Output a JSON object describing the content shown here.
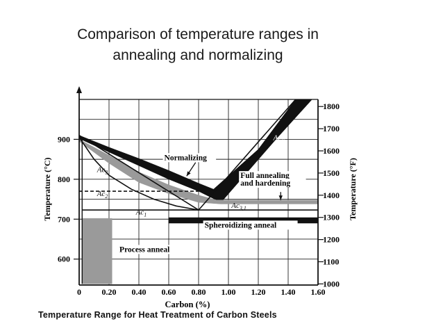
{
  "slide": {
    "title_line1": "Comparison of temperature ranges in",
    "title_line2": "annealing and normalizing"
  },
  "chart_data": {
    "type": "area",
    "caption": "Temperature Range for Heat Treatment of Carbon Steels",
    "xlabel": "Carbon (%)",
    "ylabel_left": "Temperature (°C)",
    "ylabel_right": "Temperature (°F)",
    "xlim": [
      0,
      1.6
    ],
    "ylim_c": [
      535,
      1000
    ],
    "x_ticks": [
      "0",
      "0.20",
      "0.40",
      "0.60",
      "0.80",
      "1.00",
      "1.20",
      "1.40",
      "1.60"
    ],
    "y_ticks_c": [
      600,
      700,
      800,
      900
    ],
    "y_ticks_f": [
      1000,
      1100,
      1200,
      1300,
      1400,
      1500,
      1600,
      1700,
      1800
    ],
    "grid": true,
    "region_labels": [
      {
        "text": "Normalizing"
      },
      {
        "text": "Full annealing"
      },
      {
        "text": "and hardening"
      },
      {
        "text": "Spheroidizing anneal"
      },
      {
        "text": "Process anneal"
      }
    ],
    "lines": [
      {
        "name": "Ac3",
        "points": [
          [
            0.0,
            910
          ],
          [
            0.8,
            723
          ]
        ]
      },
      {
        "name": "Acm",
        "points": [
          [
            0.8,
            723
          ],
          [
            1.45,
            1000
          ]
        ]
      },
      {
        "name": "Ac2",
        "points": [
          [
            0.0,
            770
          ],
          [
            0.8,
            770
          ]
        ]
      },
      {
        "name": "Ac1",
        "points": [
          [
            0.02,
            723
          ],
          [
            0.8,
            723
          ]
        ]
      },
      {
        "name": "Ac3,1",
        "points": [
          [
            0.8,
            723
          ],
          [
            1.6,
            723
          ]
        ]
      }
    ],
    "line_labels": [
      {
        "base": "Ac",
        "sub": "3",
        "x": 0.12,
        "y": 818
      },
      {
        "base": "Ac",
        "sub": "2",
        "x": 0.12,
        "y": 758
      },
      {
        "base": "Ac",
        "sub": "1",
        "x": 0.38,
        "y": 712
      },
      {
        "base": "Ac",
        "sub": "m",
        "x": 1.3,
        "y": 898
      },
      {
        "base": "Ac",
        "sub": "3,1",
        "x": 1.02,
        "y": 728
      }
    ],
    "bands": [
      {
        "name": "Normalizing",
        "fill": "#111111",
        "upper": [
          [
            0.0,
            910
          ],
          [
            0.2,
            880
          ],
          [
            0.4,
            852
          ],
          [
            0.6,
            822
          ],
          [
            0.8,
            790
          ],
          [
            0.9,
            775
          ],
          [
            1.2,
            875
          ],
          [
            1.45,
            1000
          ],
          [
            1.56,
            1000
          ],
          [
            1.33,
            905
          ],
          [
            0.95,
            742
          ]
        ],
        "lower": [
          [
            0.95,
            742
          ],
          [
            0.8,
            770
          ],
          [
            0.6,
            800
          ],
          [
            0.4,
            834
          ],
          [
            0.2,
            868
          ],
          [
            0.0,
            902
          ]
        ]
      },
      {
        "name": "Full annealing and hardening",
        "fill": "#9a9a9a",
        "points": [
          [
            0.0,
            900
          ],
          [
            0.2,
            860
          ],
          [
            0.4,
            818
          ],
          [
            0.6,
            786
          ],
          [
            0.8,
            760
          ],
          [
            0.92,
            748
          ],
          [
            1.6,
            748
          ],
          [
            1.6,
            738
          ],
          [
            0.95,
            738
          ],
          [
            0.8,
            742
          ],
          [
            0.6,
            764
          ],
          [
            0.4,
            792
          ],
          [
            0.2,
            840
          ],
          [
            0.0,
            895
          ]
        ]
      },
      {
        "name": "Spheroidizing anneal",
        "fill": "#111111",
        "points": [
          [
            0.6,
            704
          ],
          [
            1.6,
            704
          ],
          [
            1.6,
            690
          ],
          [
            0.6,
            690
          ]
        ]
      },
      {
        "name": "Process anneal",
        "fill": "#9a9a9a",
        "points": [
          [
            0.02,
            702
          ],
          [
            0.22,
            702
          ],
          [
            0.22,
            538
          ],
          [
            0.02,
            538
          ]
        ]
      }
    ],
    "colors": {
      "ink": "#111111",
      "shade": "#9a9a9a"
    }
  }
}
